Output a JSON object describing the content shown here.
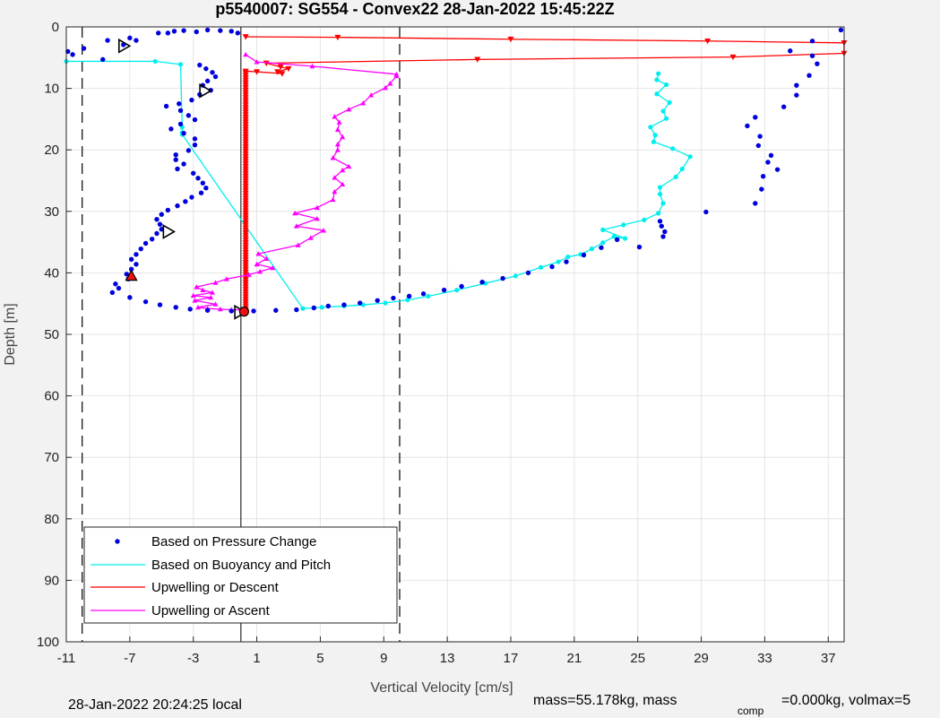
{
  "chart_data": {
    "type": "scatter",
    "title": "p5540007: SG554 - Convex22 28-Jan-2022 15:45:22Z",
    "xlabel": "Vertical Velocity [cm/s]",
    "ylabel": "Depth [m]",
    "xlim": [
      -11,
      38
    ],
    "ylim": [
      0,
      100
    ],
    "y_reversed": true,
    "grid": true,
    "x_ticks": [
      -11,
      -7,
      -3,
      1,
      5,
      9,
      13,
      17,
      21,
      25,
      29,
      33,
      37
    ],
    "y_ticks": [
      0,
      10,
      20,
      30,
      40,
      50,
      60,
      70,
      80,
      90,
      100
    ],
    "reference_lines": {
      "dashed_x": [
        -10,
        10
      ],
      "solid_x": 0
    },
    "legend_position": "lower-left",
    "series": [
      {
        "name": "Based on Pressure Change",
        "style": "dots",
        "color": "#0000dd",
        "points": [
          [
            -10.9,
            4.0
          ],
          [
            -10.6,
            4.5
          ],
          [
            -9.9,
            3.5
          ],
          [
            -8.7,
            5.3
          ],
          [
            -8.4,
            2.2
          ],
          [
            -7.4,
            2.9
          ],
          [
            -7.0,
            1.8
          ],
          [
            -6.6,
            2.2
          ],
          [
            -5.2,
            1.0
          ],
          [
            -4.6,
            1.0
          ],
          [
            -4.2,
            0.7
          ],
          [
            -3.6,
            0.6
          ],
          [
            -2.8,
            0.8
          ],
          [
            -2.1,
            0.5
          ],
          [
            -1.3,
            0.6
          ],
          [
            -0.6,
            0.7
          ],
          [
            -0.2,
            1.0
          ],
          [
            -2.6,
            6.2
          ],
          [
            -2.2,
            6.8
          ],
          [
            -1.8,
            7.4
          ],
          [
            -1.6,
            8.1
          ],
          [
            -2.1,
            8.8
          ],
          [
            -2.4,
            9.5
          ],
          [
            -1.9,
            10.3
          ],
          [
            -2.6,
            11.0
          ],
          [
            -3.1,
            11.9
          ],
          [
            -3.9,
            12.5
          ],
          [
            -4.7,
            12.9
          ],
          [
            -3.8,
            13.6
          ],
          [
            -3.3,
            14.4
          ],
          [
            -2.9,
            15.1
          ],
          [
            -3.8,
            15.8
          ],
          [
            -4.4,
            16.6
          ],
          [
            -3.6,
            17.3
          ],
          [
            -2.9,
            18.2
          ],
          [
            -2.9,
            19.2
          ],
          [
            -3.3,
            20.1
          ],
          [
            -4.1,
            20.8
          ],
          [
            -4.1,
            21.6
          ],
          [
            -3.6,
            22.3
          ],
          [
            -4.0,
            23.1
          ],
          [
            -3.0,
            23.8
          ],
          [
            -2.7,
            24.6
          ],
          [
            -2.4,
            25.4
          ],
          [
            -2.2,
            26.2
          ],
          [
            -2.5,
            27.0
          ],
          [
            -3.1,
            27.7
          ],
          [
            -3.5,
            28.4
          ],
          [
            -4.0,
            29.1
          ],
          [
            -4.6,
            29.8
          ],
          [
            -5.0,
            30.5
          ],
          [
            -5.3,
            31.3
          ],
          [
            -5.1,
            32.1
          ],
          [
            -5.0,
            32.9
          ],
          [
            -5.3,
            33.6
          ],
          [
            -5.6,
            34.5
          ],
          [
            -6.0,
            35.2
          ],
          [
            -6.3,
            36.1
          ],
          [
            -6.6,
            37.0
          ],
          [
            -6.9,
            37.8
          ],
          [
            -6.6,
            38.6
          ],
          [
            -6.9,
            39.4
          ],
          [
            -7.2,
            40.2
          ],
          [
            -7.1,
            41.0
          ],
          [
            -7.9,
            41.8
          ],
          [
            -7.7,
            42.5
          ],
          [
            -8.1,
            43.2
          ],
          [
            -7.0,
            44.0
          ],
          [
            -6.0,
            44.7
          ],
          [
            -5.1,
            45.2
          ],
          [
            -4.1,
            45.6
          ],
          [
            -3.2,
            45.9
          ],
          [
            -2.1,
            46.1
          ],
          [
            -0.6,
            46.2
          ],
          [
            0.8,
            46.2
          ],
          [
            2.2,
            46.1
          ],
          [
            3.5,
            46.0
          ],
          [
            4.6,
            45.7
          ],
          [
            5.5,
            45.4
          ],
          [
            6.5,
            45.2
          ],
          [
            7.5,
            44.9
          ],
          [
            8.6,
            44.5
          ],
          [
            9.6,
            44.1
          ],
          [
            10.6,
            43.8
          ],
          [
            11.5,
            43.4
          ],
          [
            12.8,
            42.8
          ],
          [
            13.9,
            42.2
          ],
          [
            15.2,
            41.5
          ],
          [
            16.5,
            40.9
          ],
          [
            18.1,
            40.0
          ],
          [
            19.6,
            39.0
          ],
          [
            20.5,
            38.2
          ],
          [
            21.6,
            37.1
          ],
          [
            22.7,
            35.9
          ],
          [
            23.7,
            34.6
          ],
          [
            25.1,
            35.8
          ],
          [
            26.6,
            34.1
          ],
          [
            26.7,
            33.3
          ],
          [
            26.5,
            32.4
          ],
          [
            26.4,
            31.6
          ],
          [
            29.3,
            30.1
          ],
          [
            32.4,
            28.7
          ],
          [
            32.8,
            26.4
          ],
          [
            32.9,
            24.3
          ],
          [
            33.8,
            23.2
          ],
          [
            33.2,
            22.0
          ],
          [
            33.4,
            20.9
          ],
          [
            32.6,
            19.3
          ],
          [
            32.7,
            17.8
          ],
          [
            31.9,
            16.1
          ],
          [
            32.4,
            14.7
          ],
          [
            34.2,
            13.0
          ],
          [
            35.0,
            11.1
          ],
          [
            35.0,
            9.5
          ],
          [
            35.8,
            7.9
          ],
          [
            36.3,
            6.0
          ],
          [
            36.0,
            4.7
          ],
          [
            34.6,
            3.9
          ],
          [
            36.0,
            2.3
          ],
          [
            37.8,
            0.5
          ]
        ]
      },
      {
        "name": "Based on Buoyancy and Pitch",
        "style": "line-dots",
        "color": "#00eeee",
        "points": [
          [
            -11,
            5.6
          ],
          [
            -5.4,
            5.6
          ],
          [
            -3.8,
            6.1
          ],
          [
            -3.7,
            16.3
          ],
          [
            -3.7,
            17.2
          ],
          [
            -3.7,
            17.5
          ],
          [
            3.9,
            45.8
          ],
          [
            5.1,
            45.6
          ],
          [
            6.5,
            45.4
          ],
          [
            7.7,
            45.2
          ],
          [
            9.1,
            44.9
          ],
          [
            10.5,
            44.4
          ],
          [
            11.8,
            43.8
          ],
          [
            13.6,
            42.8
          ],
          [
            15.4,
            41.7
          ],
          [
            17.3,
            40.5
          ],
          [
            18.9,
            39.1
          ],
          [
            20.0,
            38.2
          ],
          [
            20.6,
            37.4
          ],
          [
            21.4,
            37.0
          ],
          [
            22.1,
            36.1
          ],
          [
            22.8,
            35.1
          ],
          [
            23.5,
            34.1
          ],
          [
            24.2,
            34.4
          ],
          [
            22.8,
            33.0
          ],
          [
            24.1,
            32.2
          ],
          [
            25.4,
            31.4
          ],
          [
            26.3,
            30.3
          ],
          [
            26.6,
            28.7
          ],
          [
            26.4,
            27.2
          ],
          [
            26.4,
            26.1
          ],
          [
            27.4,
            24.4
          ],
          [
            27.8,
            23.1
          ],
          [
            28.3,
            21.1
          ],
          [
            27.2,
            19.8
          ],
          [
            26.0,
            18.7
          ],
          [
            26.1,
            17.6
          ],
          [
            25.8,
            16.3
          ],
          [
            26.8,
            14.9
          ],
          [
            26.6,
            13.7
          ],
          [
            27.0,
            12.3
          ],
          [
            26.2,
            10.9
          ],
          [
            26.8,
            9.4
          ],
          [
            26.2,
            8.6
          ],
          [
            26.3,
            7.6
          ]
        ]
      },
      {
        "name": "Upwelling or Descent",
        "style": "line-triangles-down",
        "color": "#ff0000",
        "points": [
          [
            0.3,
            1.6
          ],
          [
            6.1,
            1.7
          ],
          [
            17.0,
            2.0
          ],
          [
            29.4,
            2.3
          ],
          [
            38.0,
            2.6
          ],
          [
            38.0,
            4.3
          ],
          [
            31.0,
            4.9
          ],
          [
            14.9,
            5.3
          ],
          [
            1.6,
            5.9
          ],
          [
            2.5,
            6.5
          ],
          [
            3.0,
            6.8
          ],
          [
            2.3,
            7.3
          ],
          [
            2.6,
            7.6
          ],
          [
            1.0,
            7.3
          ],
          [
            0.3,
            7.2
          ],
          [
            0.3,
            46.2
          ]
        ]
      },
      {
        "name": "Upwelling or Ascent",
        "style": "line-triangles-up",
        "color": "#ff00ff",
        "points": [
          [
            0.2,
            46.0
          ],
          [
            -0.6,
            46.0
          ],
          [
            -1.3,
            45.9
          ],
          [
            -2.1,
            45.8
          ],
          [
            -2.7,
            45.6
          ],
          [
            -1.6,
            45.1
          ],
          [
            -2.9,
            44.5
          ],
          [
            -1.9,
            44.0
          ],
          [
            -3.0,
            43.7
          ],
          [
            -1.8,
            43.2
          ],
          [
            -2.4,
            42.8
          ],
          [
            -2.8,
            42.3
          ],
          [
            -1.6,
            41.6
          ],
          [
            -0.9,
            41.0
          ],
          [
            0.5,
            40.3
          ],
          [
            1.2,
            39.8
          ],
          [
            2.0,
            39.2
          ],
          [
            1.0,
            38.6
          ],
          [
            1.6,
            37.7
          ],
          [
            1.1,
            36.9
          ],
          [
            3.6,
            35.5
          ],
          [
            4.4,
            34.3
          ],
          [
            5.2,
            33.1
          ],
          [
            3.5,
            32.4
          ],
          [
            4.8,
            31.2
          ],
          [
            3.4,
            30.3
          ],
          [
            4.8,
            29.4
          ],
          [
            5.8,
            28.1
          ],
          [
            5.9,
            26.8
          ],
          [
            6.4,
            25.6
          ],
          [
            5.9,
            24.5
          ],
          [
            6.4,
            23.3
          ],
          [
            6.8,
            22.7
          ],
          [
            5.8,
            21.3
          ],
          [
            6.1,
            20.0
          ],
          [
            6.1,
            19.1
          ],
          [
            6.4,
            17.9
          ],
          [
            6.1,
            16.7
          ],
          [
            6.2,
            15.5
          ],
          [
            5.9,
            14.6
          ],
          [
            6.8,
            13.4
          ],
          [
            7.7,
            12.4
          ],
          [
            8.2,
            11.1
          ],
          [
            9.1,
            9.9
          ],
          [
            9.4,
            9.2
          ],
          [
            9.8,
            8.0
          ],
          [
            9.8,
            7.7
          ],
          [
            4.5,
            6.4
          ],
          [
            1.0,
            5.7
          ],
          [
            0.3,
            4.5
          ]
        ]
      }
    ],
    "markers": {
      "open_triangles": [
        [
          -7.4,
          3.1
        ],
        [
          -2.3,
          10.4
        ],
        [
          -4.6,
          33.3
        ],
        [
          -0.1,
          46.4
        ]
      ],
      "red_triangle": [
        -6.9,
        40.5
      ],
      "red_circle": [
        0.2,
        46.3
      ]
    },
    "footer_left": "28-Jan-2022 20:24:25 local",
    "footer_right_a": "mass=55.178kg, mass",
    "footer_right_sub": "comp",
    "footer_right_b": "=0.000kg, volmax=5"
  }
}
